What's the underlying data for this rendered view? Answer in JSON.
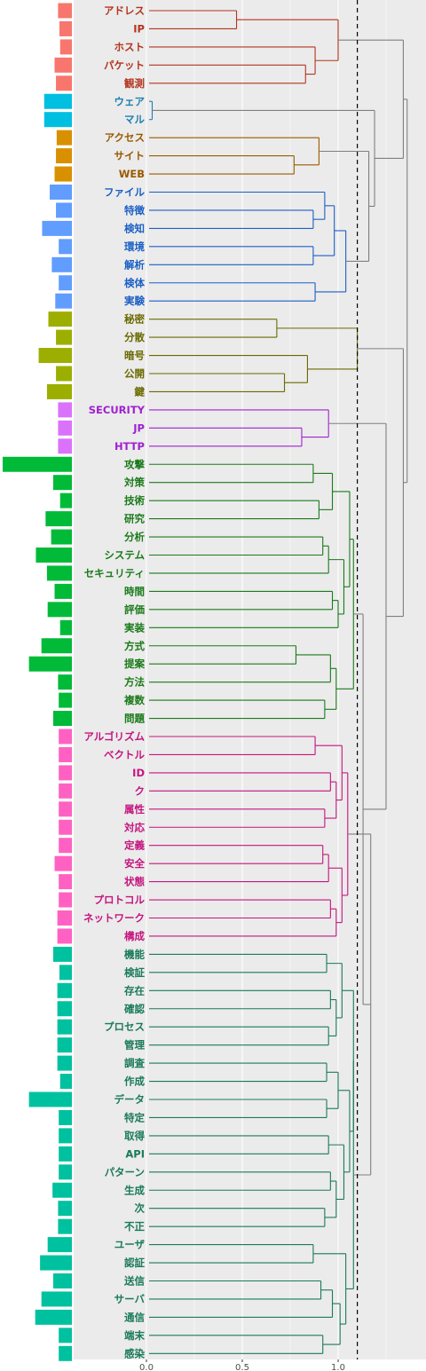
{
  "chart_data": {
    "type": "dendrogram",
    "x_axis": {
      "ticks": [
        0.0,
        0.5,
        1.0
      ],
      "tick_labels": [
        "0.0",
        "0.5",
        "1.0"
      ]
    },
    "cut_height": 1.1,
    "bar_axis_max": 1.0,
    "clusters": [
      {
        "id": 1,
        "color": "#f8766d",
        "label_color": "#b2341f",
        "members": [
          {
            "label": "アドレス",
            "freq": 0.2
          },
          {
            "label": "IP",
            "freq": 0.18
          },
          {
            "label": "ホスト",
            "freq": 0.17
          },
          {
            "label": "パケット",
            "freq": 0.25
          },
          {
            "label": "観測",
            "freq": 0.23
          }
        ]
      },
      {
        "id": 2,
        "color": "#00bfe0",
        "label_color": "#1f7fb0",
        "members": [
          {
            "label": "ウェア",
            "freq": 0.4
          },
          {
            "label": "マル",
            "freq": 0.4
          }
        ]
      },
      {
        "id": 3,
        "color": "#d89000",
        "label_color": "#9a5a00",
        "members": [
          {
            "label": "アクセス",
            "freq": 0.22
          },
          {
            "label": "サイト",
            "freq": 0.23
          },
          {
            "label": "WEB",
            "freq": 0.25
          }
        ]
      },
      {
        "id": 4,
        "color": "#619cff",
        "label_color": "#1b5fc4",
        "members": [
          {
            "label": "ファイル",
            "freq": 0.32
          },
          {
            "label": "特徴",
            "freq": 0.23
          },
          {
            "label": "検知",
            "freq": 0.43
          },
          {
            "label": "環境",
            "freq": 0.19
          },
          {
            "label": "解析",
            "freq": 0.29
          },
          {
            "label": "検体",
            "freq": 0.19
          },
          {
            "label": "実験",
            "freq": 0.24
          }
        ]
      },
      {
        "id": 5,
        "color": "#9caf00",
        "label_color": "#6a6a00",
        "members": [
          {
            "label": "秘密",
            "freq": 0.34
          },
          {
            "label": "分散",
            "freq": 0.23
          },
          {
            "label": "暗号",
            "freq": 0.48
          },
          {
            "label": "公開",
            "freq": 0.23
          },
          {
            "label": "鍵",
            "freq": 0.36
          }
        ]
      },
      {
        "id": 6,
        "color": "#db72fb",
        "label_color": "#a020d0",
        "members": [
          {
            "label": "SECURITY",
            "freq": 0.2
          },
          {
            "label": "JP",
            "freq": 0.2
          },
          {
            "label": "HTTP",
            "freq": 0.2
          }
        ]
      },
      {
        "id": 7,
        "color": "#00ba38",
        "label_color": "#1a7a1a",
        "members": [
          {
            "label": "攻撃",
            "freq": 1.0
          },
          {
            "label": "対策",
            "freq": 0.27
          },
          {
            "label": "技術",
            "freq": 0.17
          },
          {
            "label": "研究",
            "freq": 0.38
          },
          {
            "label": "分析",
            "freq": 0.3
          },
          {
            "label": "システム",
            "freq": 0.52
          },
          {
            "label": "セキュリティ",
            "freq": 0.36
          },
          {
            "label": "時間",
            "freq": 0.25
          },
          {
            "label": "評価",
            "freq": 0.35
          },
          {
            "label": "実装",
            "freq": 0.17
          },
          {
            "label": "方式",
            "freq": 0.44
          },
          {
            "label": "提案",
            "freq": 0.62
          },
          {
            "label": "方法",
            "freq": 0.2
          },
          {
            "label": "複数",
            "freq": 0.19
          },
          {
            "label": "問題",
            "freq": 0.27
          }
        ]
      },
      {
        "id": 8,
        "color": "#ff61c3",
        "label_color": "#c4147e",
        "members": [
          {
            "label": "アルゴリズム",
            "freq": 0.19
          },
          {
            "label": "ベクトル",
            "freq": 0.19
          },
          {
            "label": "ID",
            "freq": 0.19
          },
          {
            "label": "ク",
            "freq": 0.19
          },
          {
            "label": "属性",
            "freq": 0.19
          },
          {
            "label": "対応",
            "freq": 0.19
          },
          {
            "label": "定義",
            "freq": 0.19
          },
          {
            "label": "安全",
            "freq": 0.25
          },
          {
            "label": "状態",
            "freq": 0.19
          },
          {
            "label": "プロトコル",
            "freq": 0.19
          },
          {
            "label": "ネットワーク",
            "freq": 0.21
          },
          {
            "label": "構成",
            "freq": 0.21
          }
        ]
      },
      {
        "id": 9,
        "color": "#00c19f",
        "label_color": "#1a7a5a",
        "members": [
          {
            "label": "機能",
            "freq": 0.27
          },
          {
            "label": "検証",
            "freq": 0.18
          },
          {
            "label": "存在",
            "freq": 0.21
          },
          {
            "label": "確認",
            "freq": 0.21
          },
          {
            "label": "プロセス",
            "freq": 0.21
          },
          {
            "label": "管理",
            "freq": 0.21
          },
          {
            "label": "調査",
            "freq": 0.21
          },
          {
            "label": "作成",
            "freq": 0.17
          },
          {
            "label": "データ",
            "freq": 0.62
          },
          {
            "label": "特定",
            "freq": 0.19
          },
          {
            "label": "取得",
            "freq": 0.19
          },
          {
            "label": "API",
            "freq": 0.19
          },
          {
            "label": "パターン",
            "freq": 0.19
          },
          {
            "label": "生成",
            "freq": 0.28
          },
          {
            "label": "次",
            "freq": 0.2
          },
          {
            "label": "不正",
            "freq": 0.2
          },
          {
            "label": "ユーザ",
            "freq": 0.35
          },
          {
            "label": "認証",
            "freq": 0.46
          },
          {
            "label": "送信",
            "freq": 0.27
          },
          {
            "label": "サーバ",
            "freq": 0.44
          },
          {
            "label": "通信",
            "freq": 0.53
          },
          {
            "label": "端末",
            "freq": 0.19
          },
          {
            "label": "感染",
            "freq": 0.19
          }
        ]
      }
    ],
    "inner_merges": [
      {
        "cluster": 1,
        "merges": [
          [
            "パケット",
            "観測",
            0.83
          ],
          [
            "ホスト",
            "m",
            0.88
          ],
          [
            "アドレス",
            "IP",
            0.47
          ],
          [
            "m",
            "m",
            1.0
          ]
        ]
      },
      {
        "cluster": 2,
        "merges": [
          [
            "ウェア",
            "マル",
            0.03
          ]
        ]
      },
      {
        "cluster": 3,
        "merges": [
          [
            "サイト",
            "WEB",
            0.77
          ],
          [
            "アクセス",
            "m",
            0.9
          ]
        ]
      },
      {
        "cluster": 4,
        "merges": [
          [
            "特徴",
            "検知",
            0.87
          ],
          [
            "ファイル",
            "m",
            0.93
          ],
          [
            "環境",
            "解析",
            0.87
          ],
          [
            "検体",
            "実験",
            0.88
          ],
          [
            "m",
            "m",
            0.98
          ],
          [
            "m",
            "m",
            1.04
          ]
        ]
      },
      {
        "cluster": 5,
        "merges": [
          [
            "公開",
            "鍵",
            0.72
          ],
          [
            "暗号",
            "m",
            0.84
          ],
          [
            "秘密",
            "分散",
            0.68
          ],
          [
            "m",
            "m",
            1.1
          ]
        ]
      },
      {
        "cluster": 6,
        "merges": [
          [
            "JP",
            "HTTP",
            0.81
          ],
          [
            "SECURITY",
            "m",
            0.95
          ]
        ]
      },
      {
        "cluster": 7,
        "merges": [
          [
            "攻撃",
            "対策",
            0.87
          ],
          [
            "技術",
            "研究",
            0.9
          ],
          [
            "分析",
            "システム",
            0.92
          ],
          [
            "セキュリティ",
            "m",
            0.89
          ],
          [
            "時間",
            "評価",
            0.97
          ],
          [
            "方式",
            "提案",
            0.78
          ]
        ]
      },
      {
        "cluster": 8,
        "merges": [
          [
            "アルゴリズム",
            "ベクトル",
            0.88
          ],
          [
            "ID",
            "ク",
            0.96
          ],
          [
            "定義",
            "安全",
            0.92
          ],
          [
            "プロトコル",
            "ネットワーク",
            0.96
          ]
        ]
      },
      {
        "cluster": 9,
        "merges": [
          [
            "機能",
            "検証",
            0.94
          ],
          [
            "存在",
            "確認",
            0.96
          ],
          [
            "プロセス",
            "管理",
            0.95
          ],
          [
            "データ",
            "特定",
            0.94
          ],
          [
            "ユーザ",
            "認証",
            0.87
          ],
          [
            "送信",
            "サーバ",
            0.91
          ],
          [
            "端末",
            "感染",
            0.92
          ]
        ]
      }
    ]
  }
}
